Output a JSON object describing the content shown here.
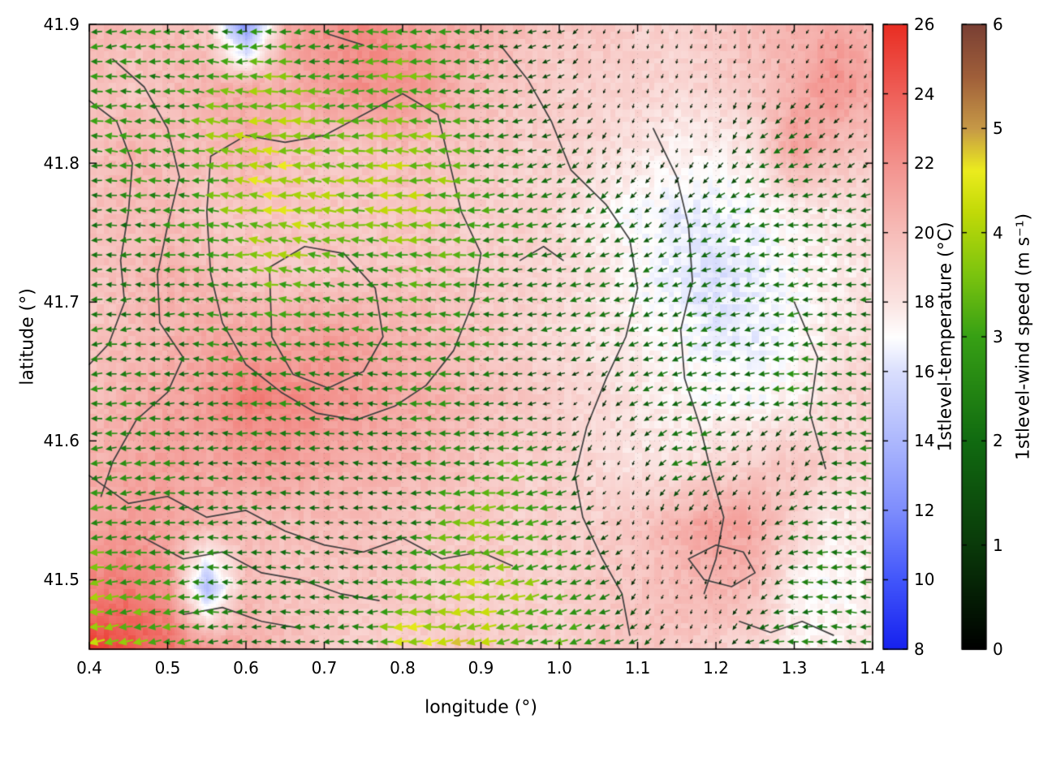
{
  "figure": {
    "xlabel": "longitude (°)",
    "ylabel": "latitude (°)",
    "x_ticks": [
      "0.4",
      "0.5",
      "0.6",
      "0.7",
      "0.8",
      "0.9",
      "1.0",
      "1.1",
      "1.2",
      "1.3",
      "1.4"
    ],
    "y_ticks": [
      "41.5",
      "41.6",
      "41.7",
      "41.8",
      "41.9"
    ]
  },
  "colorbars": {
    "temperature": {
      "label": "1stlevel-temperature (°C)",
      "min": 8,
      "max": 26,
      "ticks": [
        8,
        10,
        12,
        14,
        16,
        18,
        20,
        22,
        24,
        26
      ],
      "stops": [
        [
          8,
          "#1621ef"
        ],
        [
          10,
          "#4256fb"
        ],
        [
          12,
          "#7e8dfd"
        ],
        [
          14,
          "#adb8fd"
        ],
        [
          16,
          "#dadffd"
        ],
        [
          17,
          "#ffffff"
        ],
        [
          18,
          "#fbe4e2"
        ],
        [
          20,
          "#f7bdb9"
        ],
        [
          22,
          "#f3928d"
        ],
        [
          24,
          "#ef6059"
        ],
        [
          26,
          "#e92e23"
        ]
      ]
    },
    "wind": {
      "label": "1stlevel-wind speed (m s⁻¹)",
      "min": 0,
      "max": 6,
      "ticks": [
        0,
        1,
        2,
        3,
        4,
        5,
        6
      ],
      "stops": [
        [
          0,
          "#000000"
        ],
        [
          1,
          "#0a3a0a"
        ],
        [
          2,
          "#116b11"
        ],
        [
          3,
          "#37a015"
        ],
        [
          3.6,
          "#7cc40f"
        ],
        [
          4.2,
          "#c2da08"
        ],
        [
          4.6,
          "#ecec1e"
        ],
        [
          5,
          "#c79a47"
        ],
        [
          5.5,
          "#a05f3a"
        ],
        [
          6,
          "#7a4034"
        ]
      ]
    }
  },
  "chart_data": {
    "type": "heatmap",
    "overlays": [
      "quiver",
      "contours"
    ],
    "title": "",
    "xlabel": "longitude (°)",
    "ylabel": "latitude (°)",
    "xlim": [
      0.4,
      1.4
    ],
    "ylim": [
      41.45,
      41.9
    ],
    "lon": [
      0.4,
      0.45,
      0.5,
      0.55,
      0.6,
      0.65,
      0.7,
      0.75,
      0.8,
      0.85,
      0.9,
      0.95,
      1.0,
      1.05,
      1.1,
      1.15,
      1.2,
      1.25,
      1.3,
      1.35,
      1.4
    ],
    "lat": [
      41.9,
      41.855,
      41.81,
      41.765,
      41.72,
      41.675,
      41.63,
      41.585,
      41.54,
      41.495,
      41.45
    ],
    "temperature": [
      [
        20.5,
        20,
        20,
        19.5,
        12,
        21,
        22,
        22.5,
        21.5,
        21,
        20.5,
        20,
        19.5,
        19.5,
        19,
        19,
        19.5,
        20,
        20.5,
        21,
        20.5
      ],
      [
        20,
        19.5,
        20,
        20.5,
        21,
        20.5,
        21.5,
        22,
        22,
        21,
        20,
        19.5,
        19,
        19,
        19,
        18.5,
        19,
        19.5,
        20.5,
        22,
        21
      ],
      [
        19.5,
        20.5,
        20,
        20,
        20.5,
        20,
        19.5,
        19.5,
        20,
        19.5,
        19.5,
        19,
        19,
        18.5,
        18,
        17.5,
        17.5,
        18,
        21.5,
        20,
        19.5
      ],
      [
        20,
        20,
        20,
        19.5,
        19.5,
        19.5,
        19.5,
        19.5,
        19.5,
        19.5,
        19,
        19,
        18.5,
        17.5,
        17,
        16.5,
        16.5,
        17,
        17.5,
        18,
        18.5
      ],
      [
        19.5,
        20,
        20.5,
        20,
        19.5,
        19.5,
        19.5,
        19.5,
        19.5,
        19.5,
        19,
        19,
        18.5,
        18,
        17,
        16.5,
        16,
        16.5,
        17,
        17.5,
        18
      ],
      [
        19.5,
        20,
        20.5,
        21,
        21,
        21,
        21.5,
        21,
        20.5,
        20,
        19.5,
        19,
        18.5,
        18,
        17.5,
        17,
        16.5,
        16.5,
        17,
        18,
        18.5
      ],
      [
        20,
        20.5,
        21,
        21.5,
        23,
        22.5,
        22,
        21.5,
        21,
        20.5,
        20,
        19.5,
        19,
        18.5,
        18,
        17.5,
        17,
        17,
        17.5,
        18.5,
        19
      ],
      [
        20.5,
        21,
        21.5,
        21,
        21.5,
        21.5,
        21,
        20.5,
        20.5,
        20,
        19.5,
        19,
        19,
        18.5,
        18,
        18,
        18.5,
        19,
        19.5,
        19,
        18.5
      ],
      [
        21,
        21.5,
        21,
        20.5,
        20,
        20,
        20,
        20,
        19.5,
        19.5,
        19.5,
        19,
        19,
        19,
        19.5,
        20.5,
        21.5,
        21,
        19,
        17.5,
        18
      ],
      [
        22.5,
        23,
        22,
        14,
        20,
        19.5,
        19.5,
        19.5,
        19.5,
        19,
        19,
        19,
        19,
        19.5,
        19.5,
        20,
        20.5,
        20,
        17.5,
        17,
        17.5
      ],
      [
        25.5,
        24.5,
        23.5,
        22,
        21,
        20,
        19.5,
        19,
        19,
        19.5,
        19.5,
        19,
        19,
        19.5,
        19.5,
        19.5,
        19,
        18.5,
        17.5,
        17.5,
        18
      ]
    ],
    "wind_speed": [
      [
        2.5,
        2.5,
        2.5,
        2,
        2.5,
        2.5,
        2,
        2.5,
        3,
        2.5,
        2,
        1.5,
        1,
        0.5,
        0.5,
        0.5,
        0.5,
        0.5,
        0.5,
        0.5,
        0.5
      ],
      [
        3,
        2.5,
        2.5,
        3,
        3.5,
        3.5,
        3,
        3,
        3.5,
        3,
        2.5,
        1.5,
        1,
        0.5,
        0.5,
        0.5,
        0.5,
        0.5,
        0.5,
        0.5,
        0.5
      ],
      [
        2.5,
        3,
        2.5,
        3.5,
        4,
        4,
        3.5,
        3.5,
        4,
        3.5,
        2.5,
        2,
        1.5,
        1,
        0.5,
        0.5,
        0.5,
        2,
        2,
        1,
        0.5
      ],
      [
        2,
        2.5,
        2.5,
        3,
        4,
        4.2,
        3.8,
        3.5,
        4,
        3.5,
        3,
        2.5,
        2,
        2,
        1.5,
        1,
        2,
        2,
        2,
        2,
        2
      ],
      [
        2,
        2,
        2.5,
        2.5,
        3,
        3.5,
        3,
        2.5,
        3,
        3,
        2.5,
        2,
        2,
        2,
        2,
        2,
        2,
        2,
        2,
        2,
        2
      ],
      [
        2.5,
        2,
        2,
        2.5,
        2.5,
        2.5,
        2.5,
        2.5,
        2.5,
        2.5,
        2.5,
        2,
        2,
        2,
        2,
        2,
        2,
        2,
        2.5,
        2,
        2
      ],
      [
        2.5,
        2.5,
        2,
        2,
        2.5,
        2.5,
        2,
        2,
        2.5,
        2.5,
        2,
        1.5,
        0.5,
        0.5,
        2,
        2,
        2,
        2,
        2.5,
        2,
        2
      ],
      [
        2.5,
        2.5,
        2.5,
        2,
        2,
        2,
        2,
        2,
        2,
        2.5,
        2.5,
        3,
        2.5,
        0.5,
        0.5,
        2.5,
        2,
        0.5,
        0.5,
        2,
        2.5
      ],
      [
        3,
        2.5,
        2.5,
        2.5,
        2,
        2,
        1.5,
        1.5,
        2,
        3,
        3.5,
        3,
        2.5,
        1,
        0.5,
        0.5,
        0.5,
        0.5,
        2,
        2,
        2
      ],
      [
        3.5,
        3,
        3,
        2.5,
        2,
        2,
        2,
        2,
        3,
        3.5,
        4,
        3.5,
        3,
        2.5,
        0.5,
        0.5,
        0.5,
        0.5,
        2,
        2.5,
        2
      ],
      [
        4,
        3.5,
        3,
        2.5,
        2,
        2,
        2,
        2.5,
        4.5,
        4.5,
        4,
        3.5,
        3,
        2.5,
        2,
        0.5,
        0.5,
        2,
        2.5,
        2,
        2
      ]
    ],
    "wind_dir_deg": [
      [
        185,
        185,
        180,
        175,
        180,
        185,
        190,
        185,
        180,
        180,
        185,
        190,
        200,
        240,
        250,
        250,
        250,
        250,
        245,
        240,
        240
      ],
      [
        180,
        180,
        178,
        175,
        178,
        182,
        185,
        182,
        178,
        180,
        185,
        195,
        210,
        245,
        250,
        250,
        250,
        250,
        245,
        240,
        235
      ],
      [
        180,
        178,
        175,
        172,
        175,
        178,
        180,
        178,
        175,
        178,
        182,
        190,
        205,
        235,
        250,
        250,
        245,
        215,
        205,
        215,
        230
      ],
      [
        182,
        180,
        178,
        175,
        172,
        170,
        172,
        175,
        178,
        180,
        185,
        192,
        200,
        210,
        215,
        220,
        205,
        195,
        190,
        188,
        185
      ],
      [
        185,
        182,
        180,
        178,
        175,
        172,
        170,
        172,
        175,
        178,
        182,
        188,
        195,
        200,
        205,
        205,
        198,
        192,
        188,
        185,
        183
      ],
      [
        185,
        183,
        181,
        179,
        177,
        175,
        174,
        175,
        177,
        179,
        182,
        186,
        190,
        194,
        198,
        198,
        194,
        190,
        187,
        184,
        182
      ],
      [
        186,
        184,
        182,
        180,
        178,
        176,
        175,
        176,
        178,
        180,
        183,
        187,
        191,
        250,
        196,
        196,
        192,
        188,
        185,
        183,
        181
      ],
      [
        187,
        185,
        183,
        181,
        179,
        177,
        176,
        177,
        179,
        181,
        184,
        188,
        192,
        250,
        250,
        194,
        190,
        250,
        250,
        182,
        180
      ],
      [
        188,
        186,
        184,
        182,
        180,
        178,
        177,
        178,
        180,
        182,
        185,
        189,
        193,
        196,
        250,
        250,
        250,
        250,
        186,
        181,
        179
      ],
      [
        190,
        188,
        186,
        184,
        182,
        180,
        179,
        180,
        182,
        184,
        187,
        191,
        195,
        198,
        250,
        250,
        250,
        250,
        184,
        180,
        178
      ],
      [
        192,
        190,
        188,
        186,
        184,
        182,
        181,
        182,
        184,
        186,
        189,
        193,
        197,
        200,
        202,
        250,
        250,
        186,
        182,
        178,
        176
      ]
    ],
    "contours": [
      [
        [
          0.43,
          41.875
        ],
        [
          0.47,
          41.855
        ],
        [
          0.5,
          41.825
        ],
        [
          0.515,
          41.79
        ],
        [
          0.5,
          41.755
        ],
        [
          0.487,
          41.72
        ],
        [
          0.49,
          41.685
        ],
        [
          0.52,
          41.66
        ],
        [
          0.5,
          41.635
        ],
        [
          0.46,
          41.615
        ],
        [
          0.43,
          41.585
        ],
        [
          0.415,
          41.56
        ]
      ],
      [
        [
          0.4,
          41.845
        ],
        [
          0.435,
          41.83
        ],
        [
          0.455,
          41.8
        ],
        [
          0.45,
          41.765
        ],
        [
          0.44,
          41.73
        ],
        [
          0.445,
          41.7
        ],
        [
          0.425,
          41.67
        ],
        [
          0.4,
          41.655
        ]
      ],
      [
        [
          0.555,
          41.805
        ],
        [
          0.6,
          41.82
        ],
        [
          0.65,
          41.815
        ],
        [
          0.7,
          41.82
        ],
        [
          0.75,
          41.835
        ],
        [
          0.8,
          41.85
        ],
        [
          0.845,
          41.835
        ],
        [
          0.86,
          41.8
        ],
        [
          0.875,
          41.765
        ],
        [
          0.9,
          41.735
        ],
        [
          0.89,
          41.7
        ],
        [
          0.865,
          41.665
        ],
        [
          0.83,
          41.64
        ],
        [
          0.79,
          41.625
        ],
        [
          0.74,
          41.615
        ],
        [
          0.69,
          41.62
        ],
        [
          0.645,
          41.635
        ],
        [
          0.6,
          41.655
        ],
        [
          0.57,
          41.685
        ],
        [
          0.555,
          41.72
        ],
        [
          0.55,
          41.765
        ],
        [
          0.555,
          41.805
        ]
      ],
      [
        [
          0.63,
          41.725
        ],
        [
          0.675,
          41.74
        ],
        [
          0.725,
          41.735
        ],
        [
          0.765,
          41.71
        ],
        [
          0.775,
          41.675
        ],
        [
          0.75,
          41.65
        ],
        [
          0.705,
          41.638
        ],
        [
          0.66,
          41.648
        ],
        [
          0.633,
          41.675
        ],
        [
          0.63,
          41.725
        ]
      ],
      [
        [
          0.925,
          41.885
        ],
        [
          0.96,
          41.86
        ],
        [
          0.99,
          41.83
        ],
        [
          1.015,
          41.795
        ],
        [
          1.06,
          41.77
        ],
        [
          1.09,
          41.745
        ],
        [
          1.1,
          41.71
        ],
        [
          1.085,
          41.675
        ],
        [
          1.06,
          41.645
        ],
        [
          1.035,
          41.61
        ],
        [
          1.02,
          41.575
        ],
        [
          1.03,
          41.545
        ],
        [
          1.055,
          41.515
        ],
        [
          1.08,
          41.49
        ],
        [
          1.09,
          41.46
        ]
      ],
      [
        [
          1.12,
          41.825
        ],
        [
          1.15,
          41.79
        ],
        [
          1.165,
          41.755
        ],
        [
          1.17,
          41.715
        ],
        [
          1.155,
          41.68
        ],
        [
          1.16,
          41.645
        ],
        [
          1.18,
          41.61
        ],
        [
          1.195,
          41.575
        ],
        [
          1.21,
          41.545
        ],
        [
          1.2,
          41.515
        ],
        [
          1.185,
          41.49
        ]
      ],
      [
        [
          0.4,
          41.575
        ],
        [
          0.45,
          41.555
        ],
        [
          0.5,
          41.56
        ],
        [
          0.55,
          41.545
        ],
        [
          0.6,
          41.55
        ],
        [
          0.65,
          41.535
        ],
        [
          0.7,
          41.525
        ],
        [
          0.75,
          41.52
        ],
        [
          0.8,
          41.53
        ],
        [
          0.85,
          41.515
        ],
        [
          0.9,
          41.52
        ],
        [
          0.94,
          41.51
        ]
      ],
      [
        [
          0.47,
          41.53
        ],
        [
          0.52,
          41.515
        ],
        [
          0.57,
          41.52
        ],
        [
          0.62,
          41.505
        ],
        [
          0.67,
          41.5
        ],
        [
          0.72,
          41.49
        ],
        [
          0.77,
          41.485
        ]
      ],
      [
        [
          0.52,
          41.475
        ],
        [
          0.57,
          41.48
        ],
        [
          0.62,
          41.47
        ],
        [
          0.67,
          41.465
        ]
      ],
      [
        [
          1.165,
          41.515
        ],
        [
          1.2,
          41.525
        ],
        [
          1.235,
          41.52
        ],
        [
          1.25,
          41.505
        ],
        [
          1.22,
          41.495
        ],
        [
          1.185,
          41.5
        ],
        [
          1.165,
          41.515
        ]
      ],
      [
        [
          0.705,
          41.893
        ],
        [
          0.75,
          41.885
        ]
      ],
      [
        [
          0.95,
          41.73
        ],
        [
          0.98,
          41.74
        ],
        [
          1.005,
          41.73
        ]
      ],
      [
        [
          1.23,
          41.47
        ],
        [
          1.27,
          41.462
        ],
        [
          1.31,
          41.47
        ],
        [
          1.35,
          41.46
        ]
      ],
      [
        [
          1.3,
          41.7
        ],
        [
          1.33,
          41.66
        ],
        [
          1.32,
          41.62
        ],
        [
          1.34,
          41.58
        ]
      ]
    ]
  }
}
